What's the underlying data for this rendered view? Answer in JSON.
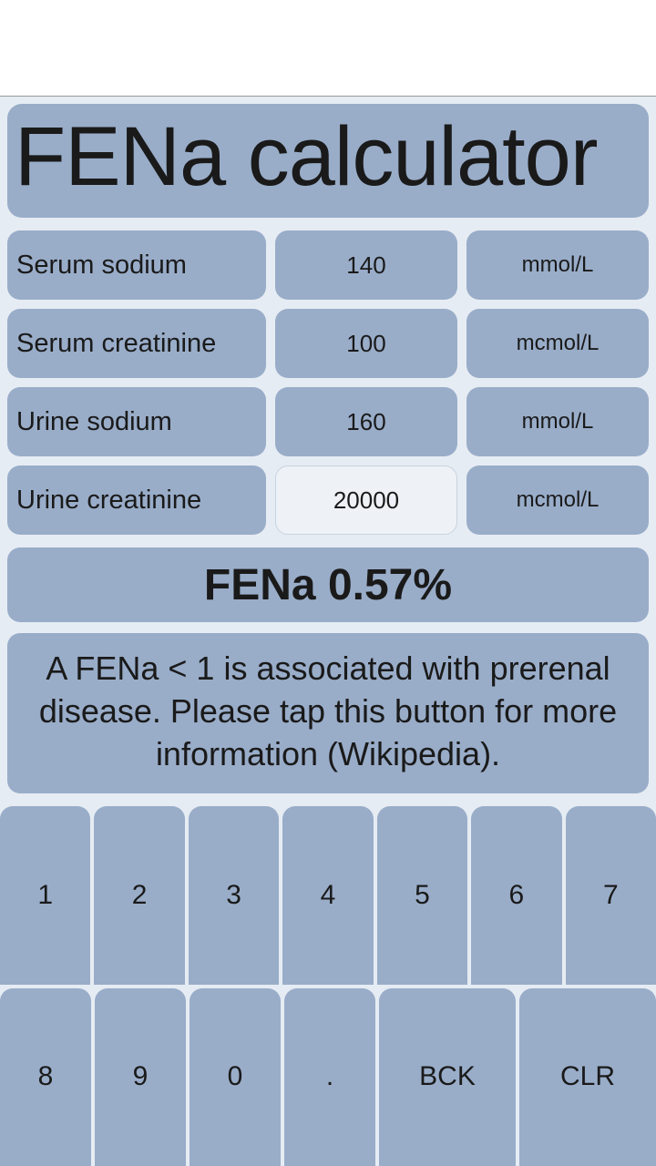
{
  "title": "FENa calculator",
  "colors": {
    "card_bg": "#99adc9",
    "app_bg": "#e6ecf3",
    "active_bg": "#eef2f7",
    "text": "#1a1a1a"
  },
  "inputs": [
    {
      "label": "Serum sodium",
      "value": "140",
      "unit": "mmol/L",
      "active": false
    },
    {
      "label": "Serum creatinine",
      "value": "100",
      "unit": "mcmol/L",
      "active": false
    },
    {
      "label": "Urine sodium",
      "value": "160",
      "unit": "mmol/L",
      "active": false
    },
    {
      "label": "Urine creatinine",
      "value": "20000",
      "unit": "mcmol/L",
      "active": true
    }
  ],
  "result": "FENa 0.57%",
  "info": "A FENa < 1 is associated with prerenal disease. Please tap this button for more information (Wikipedia).",
  "keypad": {
    "row1": [
      "1",
      "2",
      "3",
      "4",
      "5",
      "6",
      "7"
    ],
    "row2": [
      "8",
      "9",
      "0",
      ".",
      "BCK",
      "CLR"
    ]
  }
}
